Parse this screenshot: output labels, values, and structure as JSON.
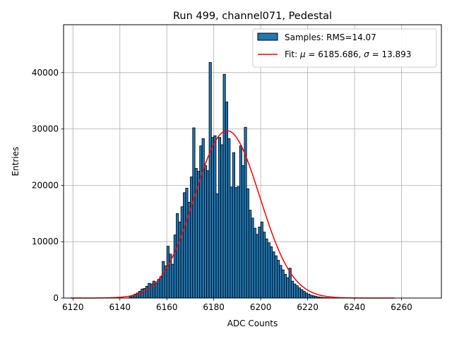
{
  "chart_data": {
    "type": "bar",
    "title": "Run 499, channel071, Pedestal",
    "xlabel": "ADC Counts",
    "ylabel": "Entries",
    "xlim": [
      6116,
      6277
    ],
    "ylim": [
      0,
      48500
    ],
    "xticks": [
      6120,
      6140,
      6160,
      6180,
      6200,
      6220,
      6240,
      6260
    ],
    "yticks": [
      0,
      10000,
      20000,
      30000,
      40000
    ],
    "grid": true,
    "legend_position": "top-right",
    "bin_width": 1,
    "histogram": {
      "name": "Samples: RMS=14.07",
      "color": "#1f77b4",
      "edge_color": "#000000",
      "bins": [
        6144,
        6145,
        6146,
        6147,
        6148,
        6149,
        6150,
        6151,
        6152,
        6153,
        6154,
        6155,
        6156,
        6157,
        6158,
        6159,
        6160,
        6161,
        6162,
        6163,
        6164,
        6165,
        6166,
        6167,
        6168,
        6169,
        6170,
        6171,
        6172,
        6173,
        6174,
        6175,
        6176,
        6177,
        6178,
        6179,
        6180,
        6181,
        6182,
        6183,
        6184,
        6185,
        6186,
        6187,
        6188,
        6189,
        6190,
        6191,
        6192,
        6193,
        6194,
        6195,
        6196,
        6197,
        6198,
        6199,
        6200,
        6201,
        6202,
        6203,
        6204,
        6205,
        6206,
        6207,
        6208,
        6209,
        6210,
        6211,
        6212,
        6213,
        6214,
        6215,
        6216,
        6217,
        6218,
        6219,
        6220,
        6221,
        6222,
        6223,
        6224,
        6225,
        6226,
        6227,
        6228,
        6229,
        6230,
        6231
      ],
      "values": [
        200,
        500,
        700,
        900,
        1200,
        1600,
        1700,
        2100,
        2600,
        2500,
        3000,
        2600,
        3300,
        3800,
        6500,
        5700,
        9200,
        7800,
        6000,
        11200,
        15000,
        13500,
        16200,
        18700,
        19500,
        17000,
        21500,
        30200,
        23000,
        22500,
        27000,
        28300,
        23500,
        22600,
        41800,
        28500,
        28800,
        18500,
        28500,
        27200,
        39700,
        34800,
        28300,
        19700,
        25800,
        19600,
        19800,
        27000,
        23500,
        30300,
        19400,
        15600,
        14200,
        12400,
        11300,
        12600,
        13500,
        11700,
        10500,
        9800,
        9100,
        8200,
        7500,
        6700,
        5800,
        5000,
        4200,
        3600,
        5300,
        3000,
        2500,
        2200,
        1800,
        1500,
        1200,
        900,
        700,
        500,
        400,
        300,
        200,
        150,
        100,
        80,
        50,
        30,
        20,
        10
      ]
    },
    "fit": {
      "name_prefix": "Fit: ",
      "mu_symbol": "μ",
      "mu_text": " = 6185.686, ",
      "sigma_symbol": "σ",
      "sigma_text": " = 13.893",
      "mu": 6185.686,
      "sigma": 13.893,
      "amplitude": 29700,
      "x_range": [
        6119,
        6257
      ],
      "color": "#ff0000"
    }
  }
}
